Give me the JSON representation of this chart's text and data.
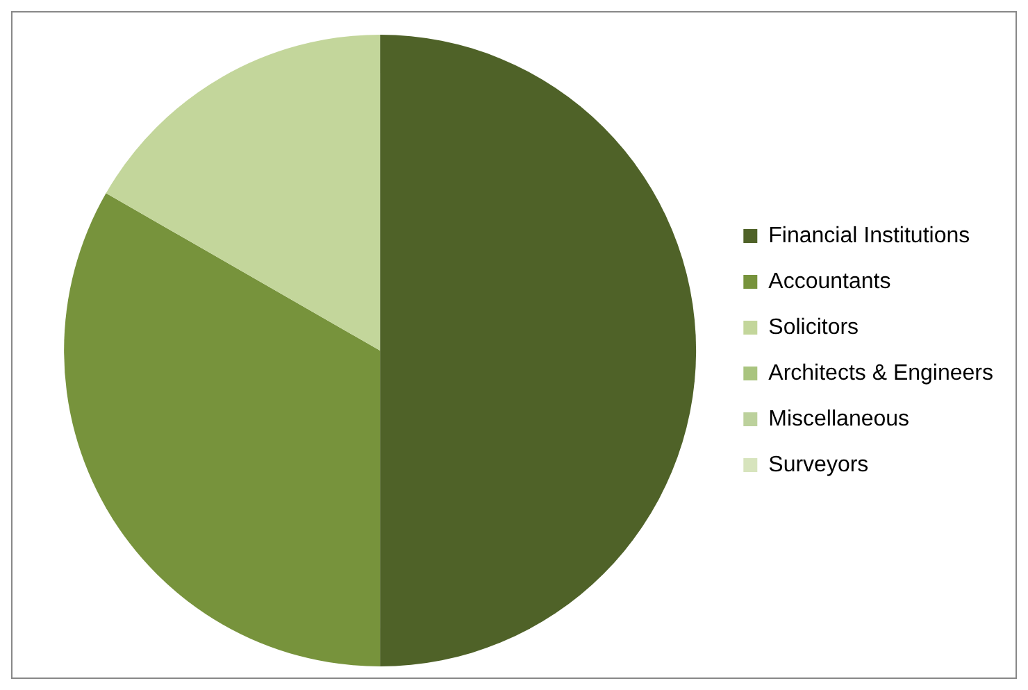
{
  "chart_data": {
    "type": "pie",
    "categories": [
      "Financial Institutions",
      "Accountants",
      "Solicitors",
      "Architects & Engineers",
      "Miscellaneous",
      "Surveyors"
    ],
    "values": [
      50,
      33.3,
      16.7,
      0,
      0,
      0
    ],
    "colors": [
      "#4f6228",
      "#77933c",
      "#c3d69b",
      "#a9c47f",
      "#bcd19c",
      "#d7e4bd"
    ],
    "legend": "right"
  }
}
